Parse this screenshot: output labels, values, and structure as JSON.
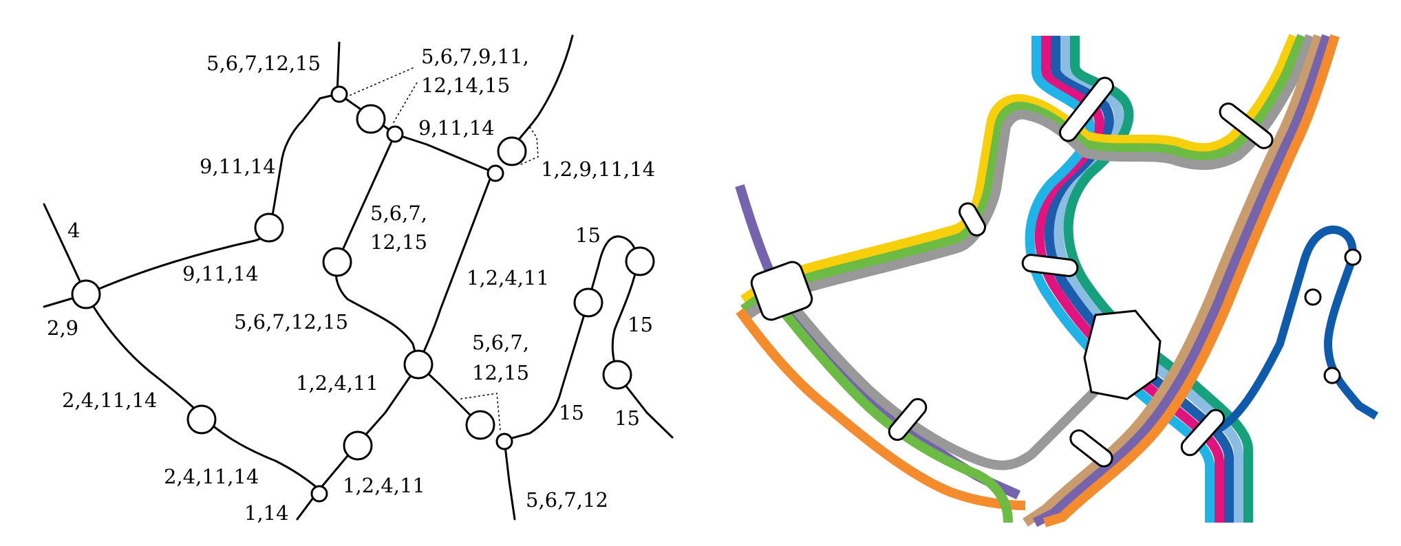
{
  "left_graph": {
    "labels": {
      "l_top_left": "5,6,7,12,15",
      "l_top_right_1": "5,6,7,9,11,",
      "l_top_right_2": "12,14,15",
      "l_center_top": "9,11,14",
      "l_left_upper": "9,11,14",
      "l_right_upper": "1,2,9,11,14",
      "l_four": "4",
      "l_mid_a": "5,6,7,",
      "l_mid_b": "12,15",
      "l_fifteen_top": "15",
      "l_left_mid": "9,11,14",
      "l_right_mid": "1,2,4,11",
      "l_two_nine": "2,9",
      "l_center": "5,6,7,12,15",
      "l_fifteen_right": "15",
      "l_low_a": "5,6,7,",
      "l_low_b": "12,15",
      "l_center_low": "1,2,4,11",
      "l_left_low": "2,4,11,14",
      "l_fifteen_mid": "15",
      "l_fifteen_bottom": "15",
      "l_bottom_left": "2,4,11,14",
      "l_bottom_center": "1,2,4,11",
      "l_one_fourteen": "1,14",
      "l_bottom_right": "5,6,7,12"
    }
  },
  "metro_map": {
    "colors": {
      "light_blue": "#8bbde3",
      "cyan": "#1fb3e8",
      "magenta": "#e0137f",
      "dark_blue": "#1b5cac",
      "teal": "#16a07c",
      "yellow": "#f7cf0a",
      "green": "#6bbb45",
      "gray": "#999999",
      "tan": "#c99c6e",
      "purple": "#7563ad",
      "orange": "#f48b2d",
      "navy": "#0e5aab"
    }
  }
}
